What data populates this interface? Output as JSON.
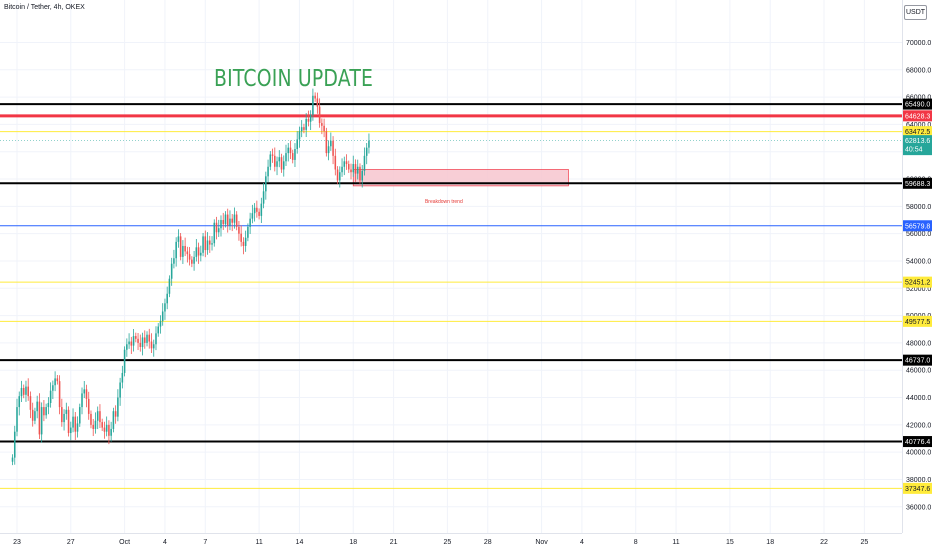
{
  "header": {
    "symbol_label": "Bitcoin / Tether, 4h, OKEX"
  },
  "annotation": {
    "title": "BITCOIN UPDATE",
    "zone_label": "Breakdown trend",
    "title_color": "#3aa155"
  },
  "price_axis": {
    "currency": "USDT",
    "current_price": "62813.6",
    "countdown": "40:54",
    "ticks": [
      "70000.0",
      "68000.0",
      "66000.0",
      "64000.0",
      "62000.0",
      "60000.0",
      "58000.0",
      "56000.0",
      "54000.0",
      "52000.0",
      "50000.0",
      "48000.0",
      "46000.0",
      "44000.0",
      "42000.0",
      "40000.0",
      "38000.0",
      "36000.0"
    ]
  },
  "time_axis": {
    "labels": [
      "23",
      "27",
      "Oct",
      "4",
      "7",
      "11",
      "14",
      "18",
      "21",
      "25",
      "28",
      "Nov",
      "4",
      "8",
      "11",
      "15",
      "18",
      "22",
      "25"
    ]
  },
  "chart_data": {
    "type": "candlestick",
    "title": "Bitcoin / Tether, 4h, OKEX",
    "xlabel": "",
    "ylabel": "",
    "ylim": [
      35300,
      72000
    ],
    "x_range": [
      "2021-09-22",
      "2021-11-28"
    ],
    "grid": true,
    "current_price": 62813.6,
    "horizontal_levels": [
      {
        "price": 65490.0,
        "label": "65490.0",
        "color": "#000000",
        "width": 2
      },
      {
        "price": 64628.3,
        "label": "64628.3",
        "color": "#f23645",
        "width": 3
      },
      {
        "price": 63472.5,
        "label": "63472.5",
        "color": "#ffeb3b",
        "width": 1
      },
      {
        "price": 59688.3,
        "label": "59688.3",
        "color": "#000000",
        "width": 2
      },
      {
        "price": 56579.8,
        "label": "56579.8",
        "color": "#2962ff",
        "width": 1
      },
      {
        "price": 52451.2,
        "label": "52451.2",
        "color": "#ffeb3b",
        "width": 1
      },
      {
        "price": 49577.5,
        "label": "49577.5",
        "color": "#ffeb3b",
        "width": 1
      },
      {
        "price": 46737.0,
        "label": "46737.0",
        "color": "#000000",
        "width": 2
      },
      {
        "price": 40776.4,
        "label": "40776.4",
        "color": "#000000",
        "width": 2
      },
      {
        "price": 37347.6,
        "label": "37347.6",
        "color": "#ffeb3b",
        "width": 1
      }
    ],
    "zone": {
      "from_date": "2021-10-18",
      "to_date": "2021-11-03",
      "price_low": 59500,
      "price_high": 60700,
      "color": "#f7c6cf"
    },
    "colors": {
      "up": "#26a69a",
      "down": "#ef5350"
    },
    "candle_closes": [
      39600,
      41500,
      43300,
      44100,
      44700,
      44200,
      44800,
      44100,
      43100,
      42300,
      43000,
      43700,
      41300,
      43300,
      42700,
      43300,
      43600,
      44500,
      44900,
      45400,
      45200,
      43300,
      42200,
      42800,
      43100,
      41400,
      41800,
      42600,
      41500,
      42100,
      43300,
      44300,
      44600,
      43900,
      42800,
      42000,
      41700,
      42300,
      43000,
      42200,
      41800,
      41500,
      42000,
      41200,
      41700,
      43000,
      42600,
      44000,
      45100,
      45800,
      47500,
      47900,
      48100,
      47800,
      48500,
      48300,
      48000,
      47700,
      48400,
      48000,
      48600,
      48100,
      47600,
      47900,
      48700,
      49200,
      49600,
      50300,
      50900,
      51600,
      52700,
      53800,
      54200,
      55400,
      55800,
      54300,
      55100,
      54700,
      54500,
      54100,
      53800,
      54300,
      55000,
      54400,
      54600,
      55800,
      54800,
      55500,
      55200,
      55300,
      56800,
      56100,
      56400,
      57000,
      56700,
      57400,
      56600,
      57100,
      56800,
      57400,
      56500,
      56000,
      55400,
      55100,
      55700,
      56500,
      57100,
      57500,
      57900,
      57600,
      57300,
      58200,
      59100,
      60200,
      60900,
      61800,
      61700,
      60900,
      61300,
      61600,
      60700,
      61300,
      61900,
      62300,
      61900,
      61400,
      62200,
      62900,
      63500,
      63800,
      63600,
      64400,
      64200,
      64700,
      66100,
      65900,
      65300,
      64100,
      63900,
      63500,
      61900,
      62400,
      62800,
      61700,
      60700,
      59900,
      60500,
      60900,
      61300,
      61100,
      60700,
      60500,
      61100,
      60400,
      60900,
      59900,
      60600,
      61700,
      62300,
      62813.6
    ],
    "first_candle_date": "2021-09-22 16:00"
  }
}
